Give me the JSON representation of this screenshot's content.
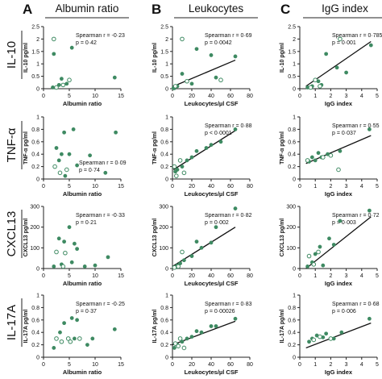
{
  "columns": [
    {
      "letter": "A",
      "title": "Albumin ratio"
    },
    {
      "letter": "B",
      "title": "Leukocytes"
    },
    {
      "letter": "C",
      "title": "IgG index"
    }
  ],
  "rows": [
    {
      "label": "IL-10"
    },
    {
      "label": "TNF-α"
    },
    {
      "label": "CXCL13"
    },
    {
      "label": "IL-17A"
    }
  ],
  "chart_data": [
    {
      "id": "a1",
      "type": "scatter",
      "ylabel": "IL-10 pg/ml",
      "xlabel": "Albumin ratio",
      "xlim": [
        0,
        15
      ],
      "ylim": [
        0,
        2.5
      ],
      "xticks": [
        0,
        5,
        10,
        15
      ],
      "yticks": [
        0,
        0.5,
        1,
        1.5,
        2,
        2.5
      ],
      "stat": [
        "Spearman r = -0·23",
        "p = 0·42"
      ],
      "filled": [
        [
          2,
          1.4
        ],
        [
          3.5,
          0.4
        ],
        [
          5.5,
          1.65
        ],
        [
          4.5,
          0.2
        ],
        [
          3,
          0.15
        ],
        [
          1.8,
          0.05
        ],
        [
          13.8,
          0.45
        ]
      ],
      "open": [
        [
          2,
          2.0
        ],
        [
          3.8,
          0.15
        ],
        [
          5,
          0.35
        ],
        [
          2.5,
          0.05
        ]
      ]
    },
    {
      "id": "b1",
      "type": "scatter",
      "ylabel": "IL-10 pg/ml",
      "xlabel": "Leukocytes/µl CSF",
      "xlim": [
        0,
        80
      ],
      "ylim": [
        0,
        2.5
      ],
      "xticks": [
        0,
        20,
        40,
        60,
        80
      ],
      "yticks": [
        0,
        0.5,
        1,
        1.5,
        2,
        2.5
      ],
      "stat": [
        "Spearman r = 0·69",
        "p = 0·0042"
      ],
      "fit": [
        [
          0,
          0.08
        ],
        [
          65,
          1.15
        ]
      ],
      "filled": [
        [
          25,
          1.6
        ],
        [
          40,
          1.35
        ],
        [
          65,
          1.3
        ],
        [
          10,
          0.6
        ],
        [
          45,
          0.45
        ],
        [
          20,
          0.2
        ],
        [
          5,
          0.1
        ],
        [
          2,
          0.02
        ],
        [
          1,
          0.02
        ]
      ],
      "open": [
        [
          10,
          2.0
        ],
        [
          15,
          0.3
        ],
        [
          50,
          0.35
        ],
        [
          3,
          0.1
        ]
      ]
    },
    {
      "id": "c1",
      "type": "scatter",
      "ylabel": "IL-10 pg/ml",
      "xlabel": "IgG index",
      "xlim": [
        0,
        5
      ],
      "ylim": [
        0,
        2.5
      ],
      "xticks": [
        0,
        1,
        2,
        3,
        4,
        5
      ],
      "yticks": [
        0,
        0.5,
        1,
        1.5,
        2,
        2.5
      ],
      "stat": [
        "Spearman r = 0·785",
        "p = 0·001"
      ],
      "fit": [
        [
          0.4,
          0.1
        ],
        [
          4.6,
          1.9
        ]
      ],
      "filled": [
        [
          4.6,
          1.75
        ],
        [
          1.7,
          1.4
        ],
        [
          2.4,
          0.85
        ],
        [
          3,
          0.65
        ],
        [
          1.2,
          0.3
        ],
        [
          1.4,
          0.15
        ],
        [
          0.8,
          0.1
        ],
        [
          0.5,
          0.05
        ]
      ],
      "open": [
        [
          2.6,
          2.0
        ],
        [
          1,
          0.35
        ],
        [
          1.3,
          0.1
        ],
        [
          0.7,
          0.05
        ]
      ]
    },
    {
      "id": "a2",
      "type": "scatter",
      "ylabel": "TNF-α pg/ml",
      "xlabel": "Albumin ratio",
      "xlim": [
        0,
        15
      ],
      "ylim": [
        0,
        1
      ],
      "xticks": [
        0,
        5,
        10,
        15
      ],
      "yticks": [
        0,
        0.2,
        0.4,
        0.6,
        0.8,
        1
      ],
      "stat": [
        "Spearman r = 0·09",
        "p = 0·74"
      ],
      "filled": [
        [
          4,
          0.75
        ],
        [
          5.8,
          0.8
        ],
        [
          14,
          0.75
        ],
        [
          3.5,
          0.4
        ],
        [
          5,
          0.4
        ],
        [
          2.5,
          0.5
        ],
        [
          6.5,
          0.22
        ],
        [
          9,
          0.38
        ],
        [
          12,
          0.1
        ],
        [
          4.2,
          0.05
        ],
        [
          3,
          0.3
        ]
      ],
      "open": [
        [
          3.2,
          0.1
        ],
        [
          4.5,
          0.15
        ],
        [
          2.2,
          0.2
        ]
      ]
    },
    {
      "id": "b2",
      "type": "scatter",
      "ylabel": "TNF-α pg/ml",
      "xlabel": "Leukocytes/µl CSF",
      "xlim": [
        0,
        80
      ],
      "ylim": [
        0,
        1
      ],
      "xticks": [
        0,
        20,
        40,
        60,
        80
      ],
      "yticks": [
        0,
        0.2,
        0.4,
        0.6,
        0.8,
        1
      ],
      "stat": [
        "Spearman r = 0·88",
        "p < 0·0001"
      ],
      "fit": [
        [
          1,
          0.15
        ],
        [
          65,
          0.78
        ]
      ],
      "filled": [
        [
          65,
          0.8
        ],
        [
          50,
          0.6
        ],
        [
          35,
          0.5
        ],
        [
          25,
          0.45
        ],
        [
          40,
          0.55
        ],
        [
          20,
          0.35
        ],
        [
          15,
          0.3
        ],
        [
          10,
          0.2
        ],
        [
          5,
          0.15
        ],
        [
          3,
          0.12
        ]
      ],
      "open": [
        [
          8,
          0.3
        ],
        [
          12,
          0.1
        ],
        [
          4,
          0.05
        ],
        [
          2,
          0.2
        ]
      ]
    },
    {
      "id": "c2",
      "type": "scatter",
      "ylabel": "TNF-α pg/ml",
      "xlabel": "IgG index",
      "xlim": [
        0,
        5
      ],
      "ylim": [
        0,
        1
      ],
      "xticks": [
        0,
        1,
        2,
        3,
        4,
        5
      ],
      "yticks": [
        0,
        0.2,
        0.4,
        0.6,
        0.8,
        1
      ],
      "stat": [
        "Spearman r = 0·55",
        "p = 0·037"
      ],
      "fit": [
        [
          0.4,
          0.25
        ],
        [
          4.6,
          0.7
        ]
      ],
      "filled": [
        [
          4.5,
          0.8
        ],
        [
          2.6,
          0.45
        ],
        [
          1.8,
          0.4
        ],
        [
          1.4,
          0.35
        ],
        [
          1,
          0.3
        ],
        [
          0.8,
          0.35
        ],
        [
          0.6,
          0.28
        ],
        [
          1.2,
          0.42
        ]
      ],
      "open": [
        [
          2.5,
          0.15
        ],
        [
          1.5,
          0.35
        ],
        [
          0.5,
          0.3
        ],
        [
          2,
          0.38
        ]
      ]
    },
    {
      "id": "a3",
      "type": "scatter",
      "ylabel": "CXCL13 pg/ml",
      "xlabel": "Albumin ratio",
      "xlim": [
        0,
        15
      ],
      "ylim": [
        0,
        300
      ],
      "xticks": [
        0,
        5,
        10,
        15
      ],
      "yticks": [
        0,
        100,
        200,
        300
      ],
      "stat": [
        "Spearman r = -0·33",
        "p = 0·21"
      ],
      "filled": [
        [
          5,
          200
        ],
        [
          6,
          120
        ],
        [
          6.5,
          95
        ],
        [
          3,
          145
        ],
        [
          4,
          130
        ],
        [
          12.5,
          55
        ],
        [
          3.5,
          20
        ],
        [
          2,
          10
        ],
        [
          8,
          10
        ],
        [
          10,
          15
        ],
        [
          5.5,
          30
        ]
      ],
      "open": [
        [
          2.5,
          80
        ],
        [
          4.2,
          75
        ],
        [
          3.8,
          10
        ]
      ]
    },
    {
      "id": "b3",
      "type": "scatter",
      "ylabel": "CXCL13 pg/ml",
      "xlabel": "Leukocytes/µl CSF",
      "xlim": [
        0,
        80
      ],
      "ylim": [
        0,
        300
      ],
      "xticks": [
        0,
        20,
        40,
        60,
        80
      ],
      "yticks": [
        0,
        100,
        200,
        300
      ],
      "stat": [
        "Spearman r = 0·82",
        "p = 0·002"
      ],
      "fit": [
        [
          0,
          10
        ],
        [
          65,
          200
        ]
      ],
      "filled": [
        [
          65,
          290
        ],
        [
          45,
          200
        ],
        [
          40,
          125
        ],
        [
          25,
          130
        ],
        [
          30,
          100
        ],
        [
          20,
          60
        ],
        [
          12,
          40
        ],
        [
          8,
          25
        ],
        [
          5,
          15
        ],
        [
          3,
          5
        ]
      ],
      "open": [
        [
          10,
          80
        ],
        [
          6,
          10
        ],
        [
          2,
          5
        ]
      ]
    },
    {
      "id": "c3",
      "type": "scatter",
      "ylabel": "CXCL13 pg/ml",
      "xlabel": "IgG index",
      "xlim": [
        0,
        5
      ],
      "ylim": [
        0,
        300
      ],
      "xticks": [
        0,
        1,
        2,
        3,
        4,
        5
      ],
      "yticks": [
        0,
        100,
        200,
        300
      ],
      "stat": [
        "Spearman r = 0·72",
        "p = 0·003"
      ],
      "fit": [
        [
          0.4,
          0
        ],
        [
          4.6,
          250
        ]
      ],
      "filled": [
        [
          4.5,
          280
        ],
        [
          2.6,
          230
        ],
        [
          1.9,
          145
        ],
        [
          2.2,
          115
        ],
        [
          1.3,
          105
        ],
        [
          1,
          70
        ],
        [
          0.8,
          30
        ],
        [
          0.5,
          10
        ],
        [
          1.5,
          15
        ]
      ],
      "open": [
        [
          1.2,
          80
        ],
        [
          0.6,
          60
        ],
        [
          0.9,
          20
        ]
      ]
    },
    {
      "id": "a4",
      "type": "scatter",
      "ylabel": "IL-17A pg/ml",
      "xlabel": "Albumin ratio",
      "xlim": [
        0,
        15
      ],
      "ylim": [
        0,
        1
      ],
      "xticks": [
        0,
        5,
        10,
        15
      ],
      "yticks": [
        0,
        0.2,
        0.4,
        0.6,
        0.8,
        1
      ],
      "stat": [
        "Spearman r = -0·25",
        "p = 0·37"
      ],
      "filled": [
        [
          5.5,
          0.63
        ],
        [
          6.5,
          0.6
        ],
        [
          4,
          0.55
        ],
        [
          3.2,
          0.4
        ],
        [
          13.8,
          0.45
        ],
        [
          8.5,
          0.2
        ],
        [
          2,
          0.15
        ],
        [
          9.5,
          0.3
        ],
        [
          6,
          0.3
        ]
      ],
      "open": [
        [
          2.5,
          0.3
        ],
        [
          3.5,
          0.25
        ],
        [
          4.8,
          0.3
        ],
        [
          5.2,
          0.25
        ],
        [
          7,
          0.3
        ]
      ]
    },
    {
      "id": "b4",
      "type": "scatter",
      "ylabel": "IL-17A pg/ml",
      "xlabel": "Leukocytes/µl CSF",
      "xlim": [
        0,
        80
      ],
      "ylim": [
        0,
        1
      ],
      "xticks": [
        0,
        20,
        40,
        60,
        80
      ],
      "yticks": [
        0,
        0.2,
        0.4,
        0.6,
        0.8,
        1
      ],
      "stat": [
        "Spearman r = 0·83",
        "p = 0·00026"
      ],
      "fit": [
        [
          0,
          0.2
        ],
        [
          65,
          0.58
        ]
      ],
      "filled": [
        [
          65,
          0.62
        ],
        [
          45,
          0.5
        ],
        [
          40,
          0.5
        ],
        [
          30,
          0.4
        ],
        [
          25,
          0.42
        ],
        [
          20,
          0.33
        ],
        [
          15,
          0.3
        ],
        [
          10,
          0.25
        ],
        [
          5,
          0.2
        ],
        [
          2,
          0.15
        ]
      ],
      "open": [
        [
          8,
          0.3
        ],
        [
          3,
          0.22
        ],
        [
          12,
          0.15
        ],
        [
          6,
          0.18
        ]
      ]
    },
    {
      "id": "c4",
      "type": "scatter",
      "ylabel": "IL-17A pg/ml",
      "xlabel": "IgG index",
      "xlim": [
        0,
        5
      ],
      "ylim": [
        0,
        1
      ],
      "xticks": [
        0,
        1,
        2,
        3,
        4,
        5
      ],
      "yticks": [
        0,
        0.2,
        0.4,
        0.6,
        0.8,
        1
      ],
      "stat": [
        "Spearman r = 0·68",
        "p = 0·006"
      ],
      "fit": [
        [
          0.4,
          0.15
        ],
        [
          4.6,
          0.55
        ]
      ],
      "filled": [
        [
          4.5,
          0.62
        ],
        [
          2.7,
          0.4
        ],
        [
          1.7,
          0.38
        ],
        [
          1.1,
          0.35
        ],
        [
          2.2,
          0.3
        ],
        [
          0.8,
          0.3
        ],
        [
          0.6,
          0.25
        ],
        [
          1.5,
          0.32
        ]
      ],
      "open": [
        [
          1.3,
          0.33
        ],
        [
          0.9,
          0.28
        ],
        [
          2,
          0.3
        ]
      ]
    }
  ],
  "colors": {
    "point": "#3e8a62",
    "line": "#111111",
    "axis": "#222222"
  }
}
